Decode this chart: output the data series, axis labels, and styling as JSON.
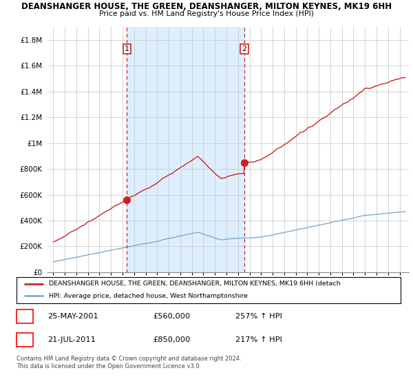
{
  "title_line1": "DEANSHANGER HOUSE, THE GREEN, DEANSHANGER, MILTON KEYNES, MK19 6HH",
  "title_line2": "Price paid vs. HM Land Registry's House Price Index (HPI)",
  "ylim": [
    0,
    1900000
  ],
  "yticks": [
    0,
    200000,
    400000,
    600000,
    800000,
    1000000,
    1200000,
    1400000,
    1600000,
    1800000
  ],
  "ytick_labels": [
    "£0",
    "£200K",
    "£400K",
    "£600K",
    "£800K",
    "£1M",
    "£1.2M",
    "£1.4M",
    "£1.6M",
    "£1.8M"
  ],
  "legend_line1": "DEANSHANGER HOUSE, THE GREEN, DEANSHANGER, MILTON KEYNES, MK19 6HH (detach",
  "legend_line2": "HPI: Average price, detached house, West Northamptonshire",
  "annotation1": {
    "num": "1",
    "date": "25-MAY-2001",
    "price": "£560,000",
    "hpi": "257% ↑ HPI"
  },
  "annotation2": {
    "num": "2",
    "date": "21-JUL-2011",
    "price": "£850,000",
    "hpi": "217% ↑ HPI"
  },
  "footnote": "Contains HM Land Registry data © Crown copyright and database right 2024.\nThis data is licensed under the Open Government Licence v3.0.",
  "hpi_color": "#7faacc",
  "price_color": "#cc2222",
  "annotation_color": "#cc2222",
  "shade_color": "#ddeeff",
  "background_color": "#ffffff",
  "grid_color": "#cccccc",
  "t1": 2001.375,
  "t2": 2011.542,
  "price1": 560000,
  "price2": 850000,
  "xlim_left": 1994.5,
  "xlim_right": 2025.8
}
